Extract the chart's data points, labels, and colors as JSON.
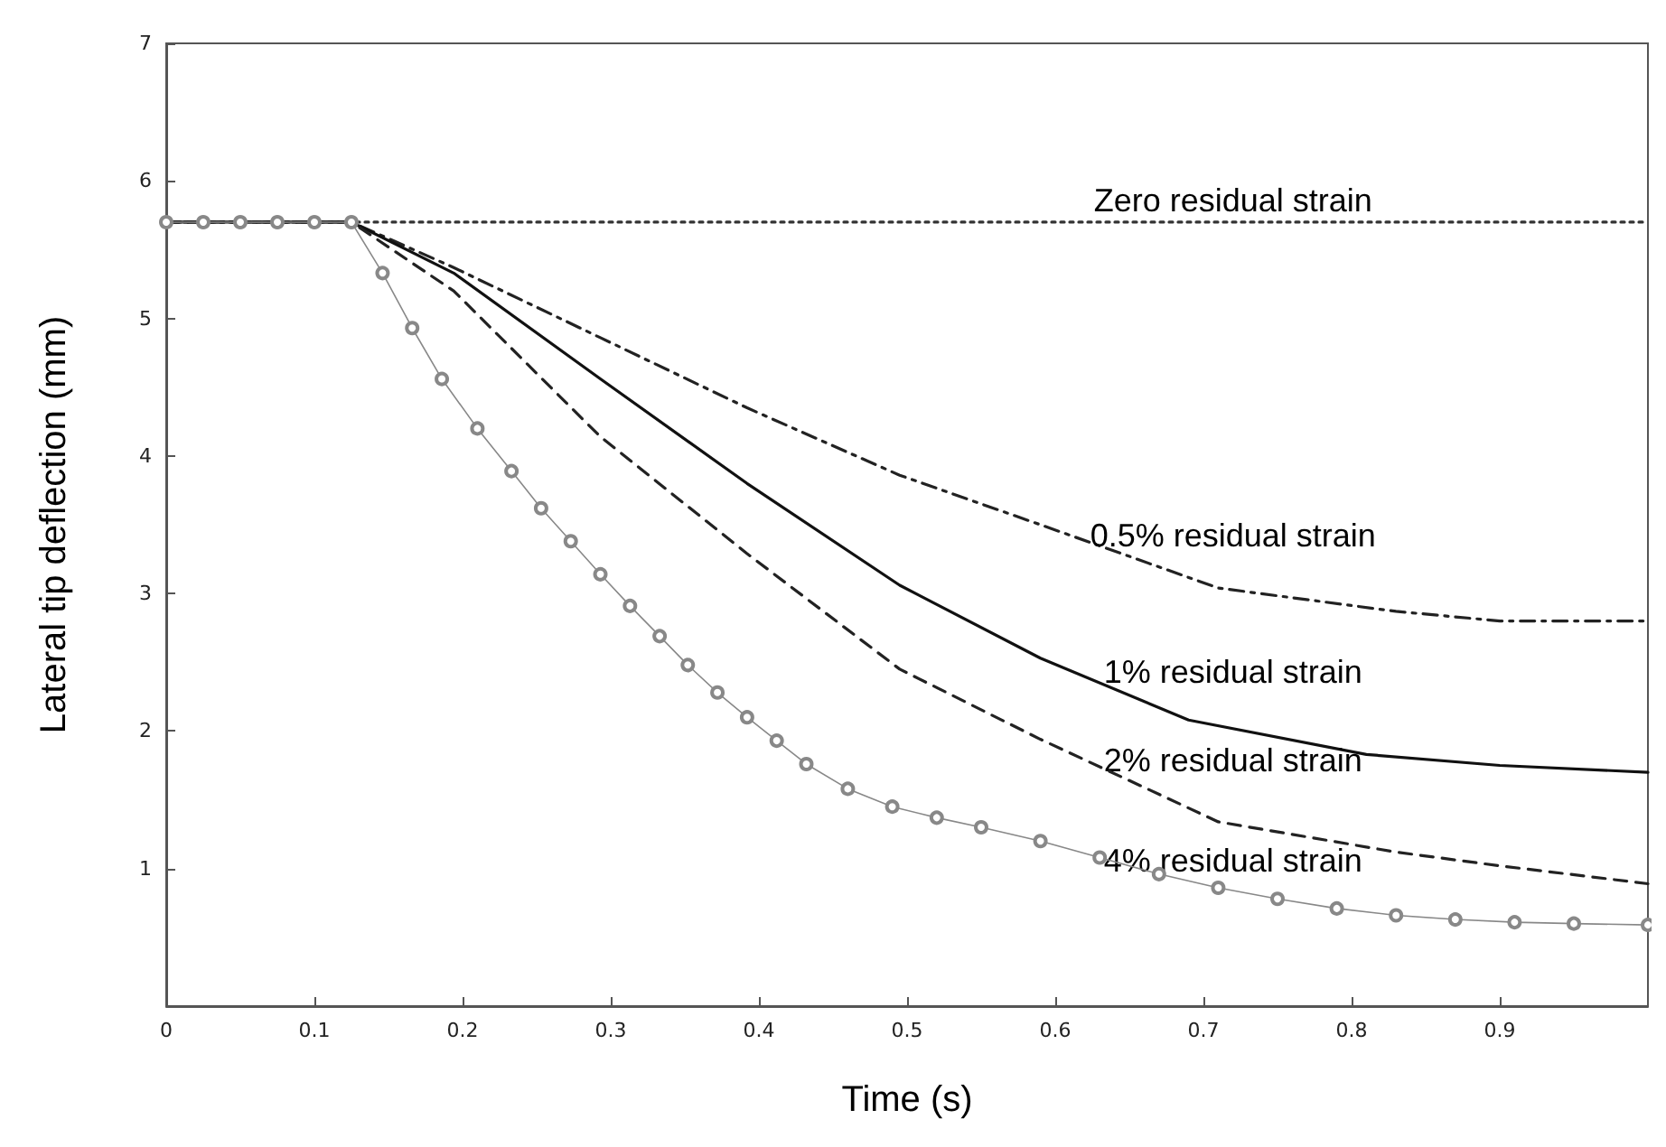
{
  "chart_data": {
    "type": "line",
    "xlabel": "Time (s)",
    "ylabel": "Lateral tip deflection (mm)",
    "xlim": [
      0,
      1
    ],
    "xticks": [
      0,
      0.1,
      0.2,
      0.3,
      0.4,
      0.5,
      0.6,
      0.7,
      0.8,
      0.9
    ],
    "ylim": [
      0,
      7
    ],
    "yticks": [
      1,
      2,
      3,
      4,
      5,
      6,
      7
    ],
    "grid": false,
    "legend": false,
    "series": [
      {
        "name": "Zero residual strain",
        "color": "#333333",
        "line_style": "dotted",
        "marker": "none",
        "x": [
          0,
          1
        ],
        "values": [
          5.7,
          5.7
        ]
      },
      {
        "name": "0.5% residual strain",
        "color": "#222222",
        "line_style": "dashdot",
        "marker": "none",
        "x": [
          0,
          0.125,
          0.194,
          0.293,
          0.392,
          0.495,
          0.59,
          0.71,
          0.83,
          0.9,
          1.0
        ],
        "values": [
          5.7,
          5.7,
          5.37,
          4.86,
          4.35,
          3.86,
          3.5,
          3.04,
          2.87,
          2.8,
          2.8
        ]
      },
      {
        "name": "1% residual strain",
        "color": "#111111",
        "line_style": "solid",
        "marker": "none",
        "x": [
          0,
          0.125,
          0.194,
          0.293,
          0.392,
          0.495,
          0.59,
          0.69,
          0.81,
          0.9,
          1.0
        ],
        "values": [
          5.7,
          5.7,
          5.33,
          4.56,
          3.8,
          3.06,
          2.53,
          2.08,
          1.83,
          1.75,
          1.7
        ]
      },
      {
        "name": "2% residual strain",
        "color": "#222222",
        "line_style": "dashed",
        "marker": "none",
        "x": [
          0,
          0.125,
          0.194,
          0.293,
          0.392,
          0.495,
          0.59,
          0.71,
          0.83,
          0.9,
          1.0
        ],
        "values": [
          5.7,
          5.7,
          5.2,
          4.14,
          3.29,
          2.45,
          1.94,
          1.34,
          1.12,
          1.02,
          0.89
        ]
      },
      {
        "name": "4% residual strain",
        "color": "#888888",
        "line_style": "solid",
        "marker": "circle",
        "x": [
          0,
          0.025,
          0.05,
          0.075,
          0.1,
          0.125,
          0.146,
          0.166,
          0.186,
          0.21,
          0.233,
          0.253,
          0.273,
          0.293,
          0.313,
          0.333,
          0.352,
          0.372,
          0.392,
          0.412,
          0.432,
          0.46,
          0.49,
          0.52,
          0.55,
          0.59,
          0.63,
          0.67,
          0.71,
          0.75,
          0.79,
          0.83,
          0.87,
          0.91,
          0.95,
          1.0
        ],
        "values": [
          5.7,
          5.7,
          5.7,
          5.7,
          5.7,
          5.7,
          5.33,
          4.93,
          4.56,
          4.2,
          3.89,
          3.62,
          3.38,
          3.14,
          2.91,
          2.69,
          2.48,
          2.28,
          2.1,
          1.93,
          1.76,
          1.58,
          1.45,
          1.37,
          1.3,
          1.2,
          1.08,
          0.96,
          0.86,
          0.78,
          0.71,
          0.66,
          0.63,
          0.61,
          0.6,
          0.59
        ]
      }
    ]
  }
}
